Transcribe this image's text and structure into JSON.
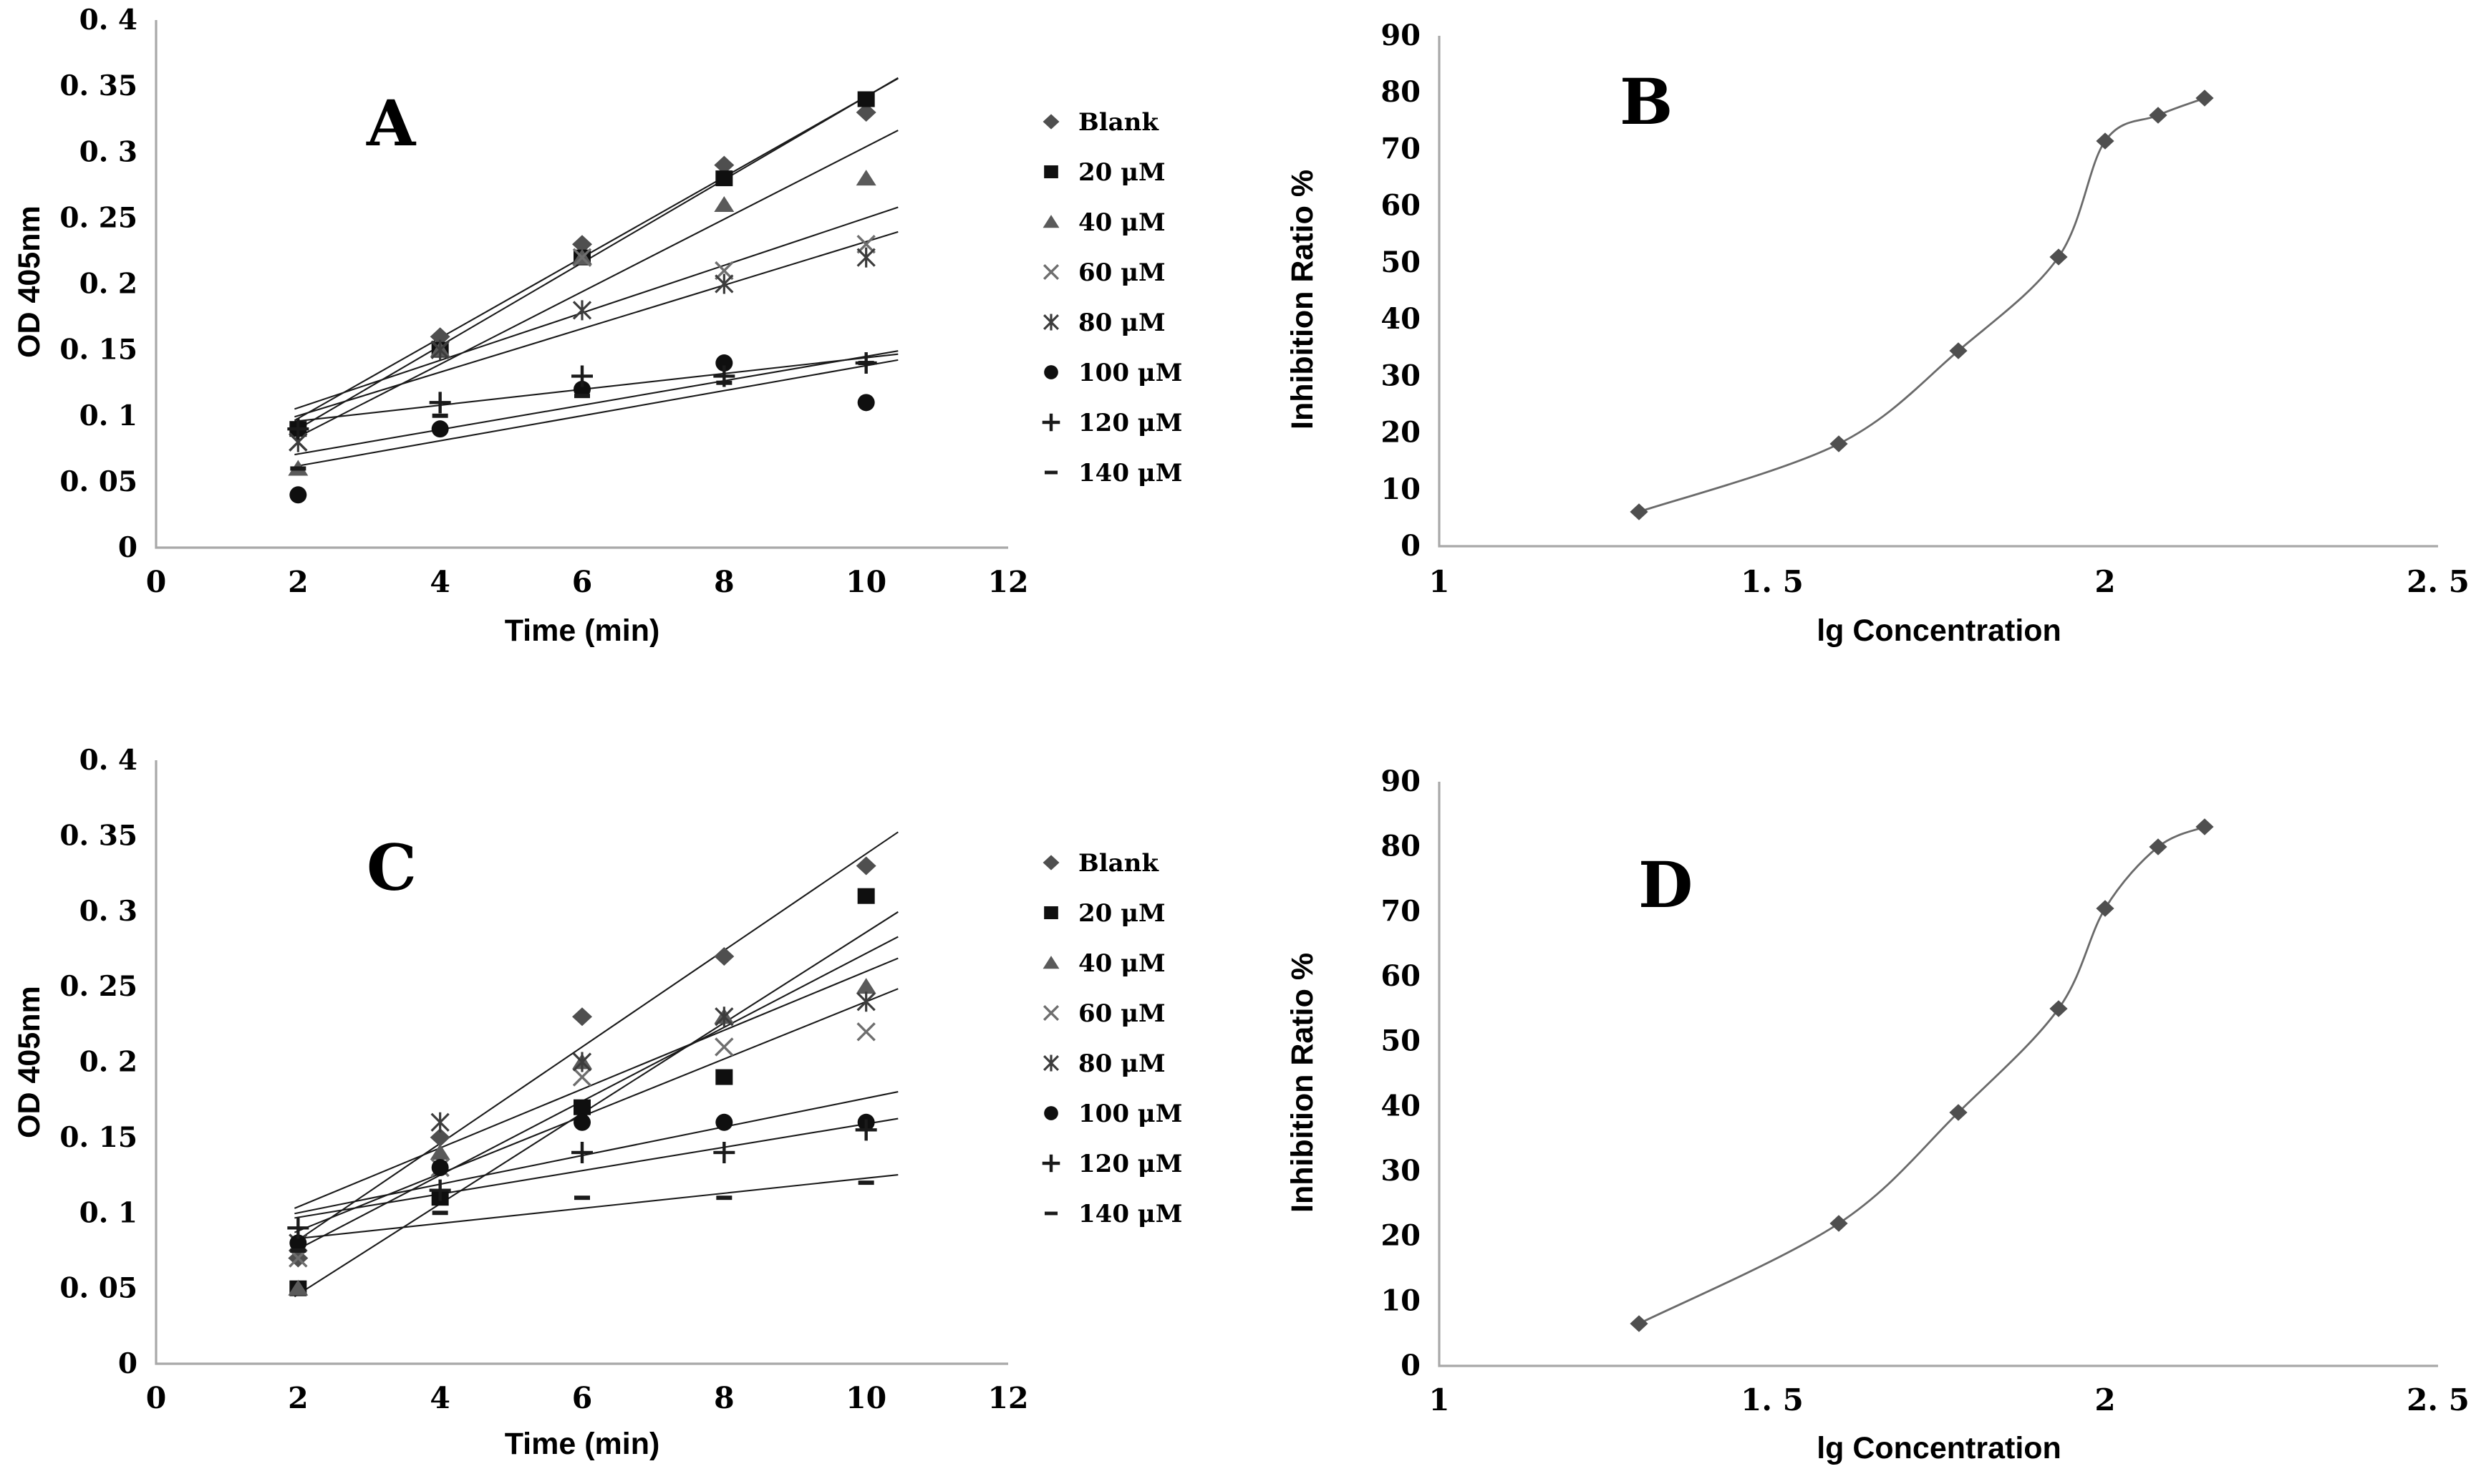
{
  "colors": {
    "background": "#ffffff",
    "axis_line": "#a8a8a8",
    "trend_line": "#1a1a1a",
    "curve_line": "#6a6a6a",
    "tick_text": "#000000"
  },
  "chart_data": [
    {
      "type": "scatter",
      "panel_label": "A",
      "xlabel": "Time (min)",
      "ylabel": "OD 405nm",
      "x_range": [
        0,
        12
      ],
      "y_range": [
        0,
        0.4
      ],
      "x_axis": {
        "title": "Time (min)",
        "tick_labels": [
          "0",
          "2",
          "4",
          "6",
          "8",
          "10",
          "12"
        ],
        "tick_values": [
          0,
          2,
          4,
          6,
          8,
          10,
          12
        ]
      },
      "y_axis": {
        "title": "OD 405nm",
        "tick_labels": [
          "0",
          "0. 05",
          "0. 1",
          "0. 15",
          "0. 2",
          "0. 25",
          "0. 3",
          "0. 35",
          "0. 4"
        ],
        "tick_values": [
          0,
          0.05,
          0.1,
          0.15,
          0.2,
          0.25,
          0.3,
          0.35,
          0.4
        ]
      },
      "x_values": [
        2,
        4,
        6,
        8,
        10
      ],
      "legend_position": "right",
      "series": [
        {
          "name": "Blank",
          "marker": "diamond",
          "color": "#4f4f4f",
          "values": [
            0.09,
            0.16,
            0.23,
            0.29,
            0.33
          ],
          "trendline": true
        },
        {
          "name": "20 μM",
          "marker": "square",
          "color": "#0f0f0f",
          "values": [
            0.09,
            0.15,
            0.22,
            0.28,
            0.34
          ],
          "trendline": true
        },
        {
          "name": "40 μM",
          "marker": "triangle",
          "color": "#5a5a5a",
          "values": [
            0.06,
            0.15,
            0.22,
            0.26,
            0.28
          ],
          "trendline": true
        },
        {
          "name": "60 μM",
          "marker": "x",
          "color": "#6e6e6e",
          "values": [
            0.08,
            0.15,
            0.22,
            0.21,
            0.23
          ],
          "trendline": true
        },
        {
          "name": "80 μM",
          "marker": "star",
          "color": "#3c3c3c",
          "values": [
            0.08,
            0.15,
            0.18,
            0.2,
            0.22
          ],
          "trendline": true
        },
        {
          "name": "100 μM",
          "marker": "circle",
          "color": "#0f0f0f",
          "values": [
            0.04,
            0.09,
            0.12,
            0.14,
            0.11
          ],
          "trendline": true
        },
        {
          "name": "120 μM",
          "marker": "plus",
          "color": "#1a1a1a",
          "values": [
            0.09,
            0.11,
            0.13,
            0.13,
            0.14
          ],
          "trendline": true
        },
        {
          "name": "140 μM",
          "marker": "dash",
          "color": "#1a1a1a",
          "values": [
            0.06,
            0.1,
            0.115,
            0.125,
            0.14
          ],
          "trendline": true
        }
      ]
    },
    {
      "type": "line",
      "panel_label": "B",
      "xlabel": "lg Concentration",
      "ylabel": "Inhibition Ratio %",
      "x_range": [
        1,
        2.5
      ],
      "y_range": [
        0,
        90
      ],
      "x_axis": {
        "title": "lg Concentration",
        "tick_labels": [
          "1",
          "1. 5",
          "2",
          "2. 5"
        ],
        "tick_values": [
          1,
          1.5,
          2,
          2.5
        ]
      },
      "y_axis": {
        "title": "Inhibition Ratio %",
        "tick_labels": [
          "0",
          "10",
          "20",
          "30",
          "40",
          "50",
          "60",
          "70",
          "80",
          "90"
        ],
        "tick_values": [
          0,
          10,
          20,
          30,
          40,
          50,
          60,
          70,
          80,
          90
        ]
      },
      "marker": "diamond",
      "marker_color": "#4f4f4f",
      "points": [
        [
          1.3,
          6
        ],
        [
          1.6,
          18
        ],
        [
          1.78,
          34.5
        ],
        [
          1.93,
          51
        ],
        [
          2.0,
          71.5
        ],
        [
          2.08,
          76
        ],
        [
          2.15,
          79
        ]
      ]
    },
    {
      "type": "scatter",
      "panel_label": "C",
      "xlabel": "Time (min)",
      "ylabel": "OD 405nm",
      "x_range": [
        0,
        12
      ],
      "y_range": [
        0,
        0.4
      ],
      "x_axis": {
        "title": "Time (min)",
        "tick_labels": [
          "0",
          "2",
          "4",
          "6",
          "8",
          "10",
          "12"
        ],
        "tick_values": [
          0,
          2,
          4,
          6,
          8,
          10,
          12
        ]
      },
      "y_axis": {
        "title": "OD 405nm",
        "tick_labels": [
          "0",
          "0. 05",
          "0. 1",
          "0. 15",
          "0. 2",
          "0. 25",
          "0. 3",
          "0. 35",
          "0. 4"
        ],
        "tick_values": [
          0,
          0.05,
          0.1,
          0.15,
          0.2,
          0.25,
          0.3,
          0.35,
          0.4
        ]
      },
      "x_values": [
        2,
        4,
        6,
        8,
        10
      ],
      "legend_position": "right",
      "series": [
        {
          "name": "Blank",
          "marker": "diamond",
          "color": "#4f4f4f",
          "values": [
            0.07,
            0.15,
            0.23,
            0.27,
            0.33
          ],
          "trendline": true
        },
        {
          "name": "20 μM",
          "marker": "square",
          "color": "#0f0f0f",
          "values": [
            0.05,
            0.11,
            0.17,
            0.19,
            0.31
          ],
          "trendline": true
        },
        {
          "name": "40 μM",
          "marker": "triangle",
          "color": "#5a5a5a",
          "values": [
            0.05,
            0.14,
            0.2,
            0.23,
            0.25
          ],
          "trendline": true
        },
        {
          "name": "60 μM",
          "marker": "x",
          "color": "#6e6e6e",
          "values": [
            0.07,
            0.13,
            0.19,
            0.21,
            0.22
          ],
          "trendline": true
        },
        {
          "name": "80 μM",
          "marker": "star",
          "color": "#3c3c3c",
          "values": [
            0.08,
            0.16,
            0.2,
            0.23,
            0.24
          ],
          "trendline": true
        },
        {
          "name": "100 μM",
          "marker": "circle",
          "color": "#0f0f0f",
          "values": [
            0.08,
            0.13,
            0.16,
            0.16,
            0.16
          ],
          "trendline": true
        },
        {
          "name": "120 μM",
          "marker": "plus",
          "color": "#1a1a1a",
          "values": [
            0.09,
            0.115,
            0.14,
            0.14,
            0.155
          ],
          "trendline": true
        },
        {
          "name": "140 μM",
          "marker": "dash",
          "color": "#1a1a1a",
          "values": [
            0.075,
            0.1,
            0.11,
            0.11,
            0.12
          ],
          "trendline": true
        }
      ]
    },
    {
      "type": "line",
      "panel_label": "D",
      "xlabel": "lg Concentration",
      "ylabel": "Inhibition Ratio %",
      "x_range": [
        1,
        2.5
      ],
      "y_range": [
        0,
        90
      ],
      "x_axis": {
        "title": "lg Concentration",
        "tick_labels": [
          "1",
          "1. 5",
          "2",
          "2. 5"
        ],
        "tick_values": [
          1,
          1.5,
          2,
          2.5
        ]
      },
      "y_axis": {
        "title": "Inhibition Ratio %",
        "tick_labels": [
          "0",
          "10",
          "20",
          "30",
          "40",
          "50",
          "60",
          "70",
          "80",
          "90"
        ],
        "tick_values": [
          0,
          10,
          20,
          30,
          40,
          50,
          60,
          70,
          80,
          90
        ]
      },
      "marker": "diamond",
      "marker_color": "#4f4f4f",
      "points": [
        [
          1.3,
          6.5
        ],
        [
          1.6,
          22
        ],
        [
          1.78,
          39
        ],
        [
          1.93,
          55
        ],
        [
          2.0,
          70.5
        ],
        [
          2.08,
          80
        ],
        [
          2.15,
          83
        ]
      ]
    }
  ]
}
